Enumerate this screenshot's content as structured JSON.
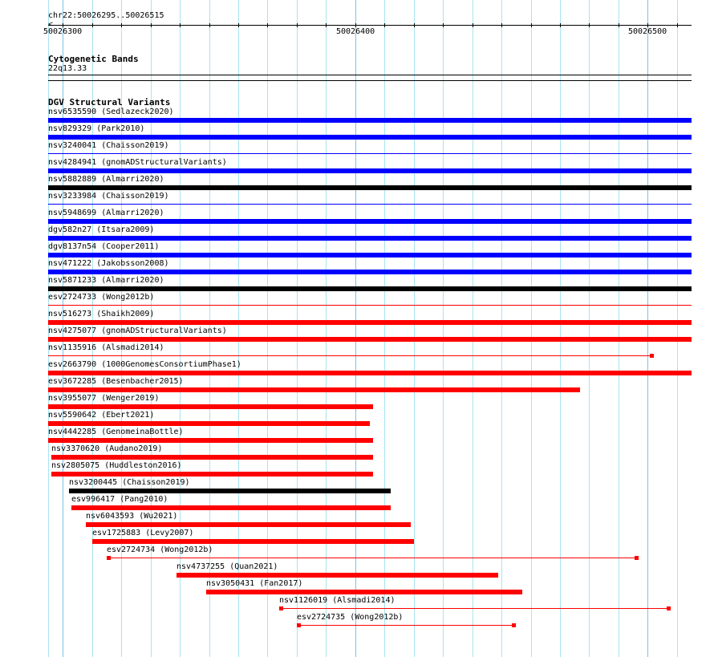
{
  "view": {
    "location": "chr22:50026295..50026515",
    "start": 50026295,
    "end": 50026515
  },
  "ruler": {
    "labels": [
      "50026300",
      "50026400",
      "50026500"
    ],
    "label_positions_bp": [
      50026300,
      50026400,
      50026500
    ]
  },
  "cytobands": {
    "title": "Cytogenetic Bands",
    "band": "22q13.33"
  },
  "dgv": {
    "title": "DGV Structural Variants",
    "colors": {
      "blue": "#0000ff",
      "red": "#ff0000",
      "black": "#000000"
    },
    "variants": [
      {
        "label": "nsv6535590 (Sedlazeck2020)",
        "start": 50026295,
        "end": 50026515,
        "color": "blue",
        "style": "thick"
      },
      {
        "label": "nsv829329 (Park2010)",
        "start": 50026295,
        "end": 50026515,
        "color": "blue",
        "style": "thick"
      },
      {
        "label": "nsv3240041 (Chaisson2019)",
        "start": 50026295,
        "end": 50026515,
        "color": "blue",
        "style": "thin"
      },
      {
        "label": "nsv4284941 (gnomADStructuralVariants)",
        "start": 50026295,
        "end": 50026515,
        "color": "blue",
        "style": "thick"
      },
      {
        "label": "nsv5882889 (Almarri2020)",
        "start": 50026295,
        "end": 50026515,
        "color": "black",
        "style": "thick"
      },
      {
        "label": "nsv3233984 (Chaisson2019)",
        "start": 50026295,
        "end": 50026515,
        "color": "blue",
        "style": "thin"
      },
      {
        "label": "nsv5948699 (Almarri2020)",
        "start": 50026295,
        "end": 50026515,
        "color": "blue",
        "style": "thick"
      },
      {
        "label": "dgv582n27 (Itsara2009)",
        "start": 50026295,
        "end": 50026515,
        "color": "blue",
        "style": "thick"
      },
      {
        "label": "dgv8137n54 (Cooper2011)",
        "start": 50026295,
        "end": 50026515,
        "color": "blue",
        "style": "thick"
      },
      {
        "label": "nsv471222 (Jakobsson2008)",
        "start": 50026295,
        "end": 50026515,
        "color": "blue",
        "style": "thick"
      },
      {
        "label": "nsv5871233 (Almarri2020)",
        "start": 50026295,
        "end": 50026515,
        "color": "black",
        "style": "thick"
      },
      {
        "label": "esv2724733 (Wong2012b)",
        "start": 50026295,
        "end": 50026515,
        "color": "red",
        "style": "thin"
      },
      {
        "label": "nsv516273 (Shaikh2009)",
        "start": 50026295,
        "end": 50026515,
        "color": "red",
        "style": "thick"
      },
      {
        "label": "nsv4275077 (gnomADStructuralVariants)",
        "start": 50026295,
        "end": 50026515,
        "color": "red",
        "style": "thick"
      },
      {
        "label": "nsv1135916 (Alsmadi2014)",
        "start": 50026295,
        "end": 50026502,
        "color": "red",
        "style": "thin-marker"
      },
      {
        "label": "esv2663790 (1000GenomesConsortiumPhase1)",
        "start": 50026295,
        "end": 50026515,
        "color": "red",
        "style": "thick"
      },
      {
        "label": "esv3672285 (Besenbacher2015)",
        "start": 50026295,
        "end": 50026477,
        "color": "red",
        "style": "thick"
      },
      {
        "label": "nsv3955077 (Wenger2019)",
        "start": 50026295,
        "end": 50026406,
        "color": "red",
        "style": "thick"
      },
      {
        "label": "nsv5590642 (Ebert2021)",
        "start": 50026295,
        "end": 50026405,
        "color": "red",
        "style": "thick"
      },
      {
        "label": "nsv4442285 (GenomeinaBottle)",
        "start": 50026295,
        "end": 50026406,
        "color": "red",
        "style": "thick"
      },
      {
        "label": "nsv3370620 (Audano2019)",
        "start": 50026296,
        "end": 50026406,
        "color": "red",
        "style": "thick"
      },
      {
        "label": "nsv2805075 (Huddleston2016)",
        "start": 50026296,
        "end": 50026406,
        "color": "red",
        "style": "thick"
      },
      {
        "label": "nsv3200445 (Chaisson2019)",
        "start": 50026302,
        "end": 50026412,
        "color": "black",
        "style": "thick"
      },
      {
        "label": "esv996417 (Pang2010)",
        "start": 50026303,
        "end": 50026412,
        "color": "red",
        "style": "thick"
      },
      {
        "label": "nsv6043593 (Wu2021)",
        "start": 50026308,
        "end": 50026419,
        "color": "red",
        "style": "thick"
      },
      {
        "label": "esv1725883 (Levy2007)",
        "start": 50026310,
        "end": 50026420,
        "color": "red",
        "style": "thick"
      },
      {
        "label": "esv2724734 (Wong2012b)",
        "start": 50026315,
        "end": 50026497,
        "color": "red",
        "style": "thin-marker"
      },
      {
        "label": "nsv4737255 (Quan2021)",
        "start": 50026339,
        "end": 50026449,
        "color": "red",
        "style": "thick"
      },
      {
        "label": "nsv3050431 (Fan2017)",
        "start": 50026349,
        "end": 50026457,
        "color": "red",
        "style": "thick"
      },
      {
        "label": "nsv1126019 (Alsmadi2014)",
        "start": 50026374,
        "end": 50026508,
        "color": "red",
        "style": "thin-marker"
      },
      {
        "label": "esv2724735 (Wong2012b)",
        "start": 50026380,
        "end": 50026455,
        "color": "red",
        "style": "thin-marker"
      }
    ]
  }
}
